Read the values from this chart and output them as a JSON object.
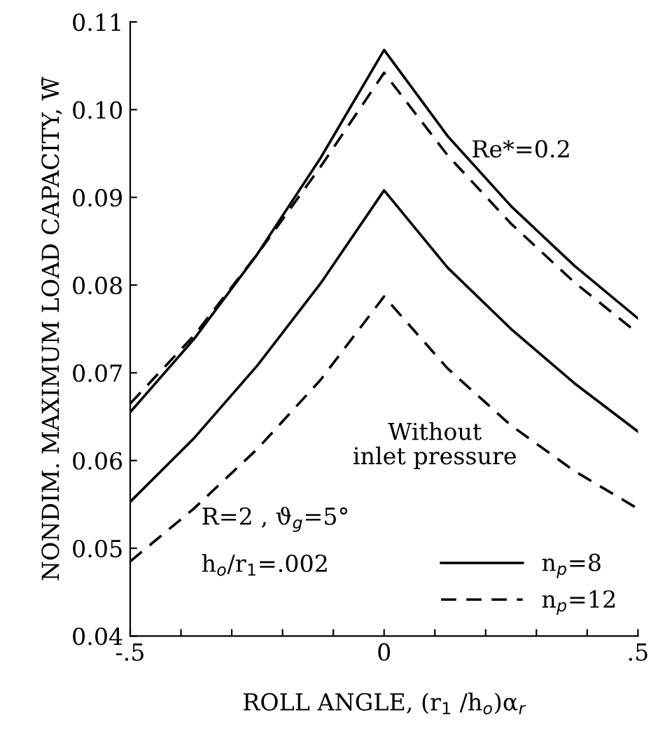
{
  "chart_data": {
    "type": "line",
    "xlabel": "ROLL ANGLE, (r$_{1}$ /h$_{o}$)α$_{r}$",
    "ylabel": "NONDIM. MAXIMUM LOAD CAPACITY, W̄",
    "x": [
      -0.5,
      -0.375,
      -0.25,
      -0.125,
      0,
      0.125,
      0.25,
      0.375,
      0.5
    ],
    "series": [
      {
        "name": "n$_{p}$=8",
        "color": "#000000",
        "line_style": "solid",
        "values": [
          0.0655,
          0.0738,
          0.0835,
          0.0945,
          0.1068,
          0.097,
          0.089,
          0.0822,
          0.0762
        ]
      },
      {
        "name": "n$_{p}$=12",
        "color": "#000000",
        "line_style": "dashed",
        "values": [
          0.0665,
          0.0742,
          0.0835,
          0.0935,
          0.1042,
          0.0948,
          0.087,
          0.0803,
          0.0745
        ]
      },
      {
        "color": "#000000",
        "line_style": "solid",
        "values": [
          0.0553,
          0.0625,
          0.0708,
          0.0802,
          0.0908,
          0.082,
          0.075,
          0.0688,
          0.0633
        ]
      },
      {
        "color": "#000000",
        "line_style": "dashed",
        "values": [
          0.0485,
          0.0545,
          0.0613,
          0.0692,
          0.0787,
          0.0705,
          0.064,
          0.0588,
          0.0545
        ]
      }
    ],
    "xlim": [
      -0.5,
      0.5
    ],
    "xticks": [
      {
        "value": -0.5,
        "label": "-.5"
      },
      {
        "value": -0.4,
        "label": null
      },
      {
        "value": -0.3,
        "label": null
      },
      {
        "value": -0.2,
        "label": null
      },
      {
        "value": -0.1,
        "label": null
      },
      {
        "value": 0,
        "label": "0"
      },
      {
        "value": 0.1,
        "label": null
      },
      {
        "value": 0.2,
        "label": null
      },
      {
        "value": 0.3,
        "label": null
      },
      {
        "value": 0.4,
        "label": null
      },
      {
        "value": 0.5,
        "label": ".5"
      }
    ],
    "ylim": [
      0.04,
      0.11
    ],
    "yticks": [
      {
        "value": 0.04,
        "label": "0.04"
      },
      {
        "value": 0.05,
        "label": "0.05"
      },
      {
        "value": 0.06,
        "label": "0.06"
      },
      {
        "value": 0.07,
        "label": "0.07"
      },
      {
        "value": 0.08,
        "label": "0.08"
      },
      {
        "value": 0.09,
        "label": "0.09"
      },
      {
        "value": 0.1,
        "label": "0.10"
      },
      {
        "value": 0.11,
        "label": "0.11"
      }
    ],
    "annotations": [
      "Re*=0.2",
      "Without\ninlet pressure",
      "R=2 , ϑ$_{g}$=5°",
      "h$_{o}$/r$_{1}$=.002"
    ],
    "legend": "bottom right",
    "grid": false,
    "marker": "none"
  }
}
